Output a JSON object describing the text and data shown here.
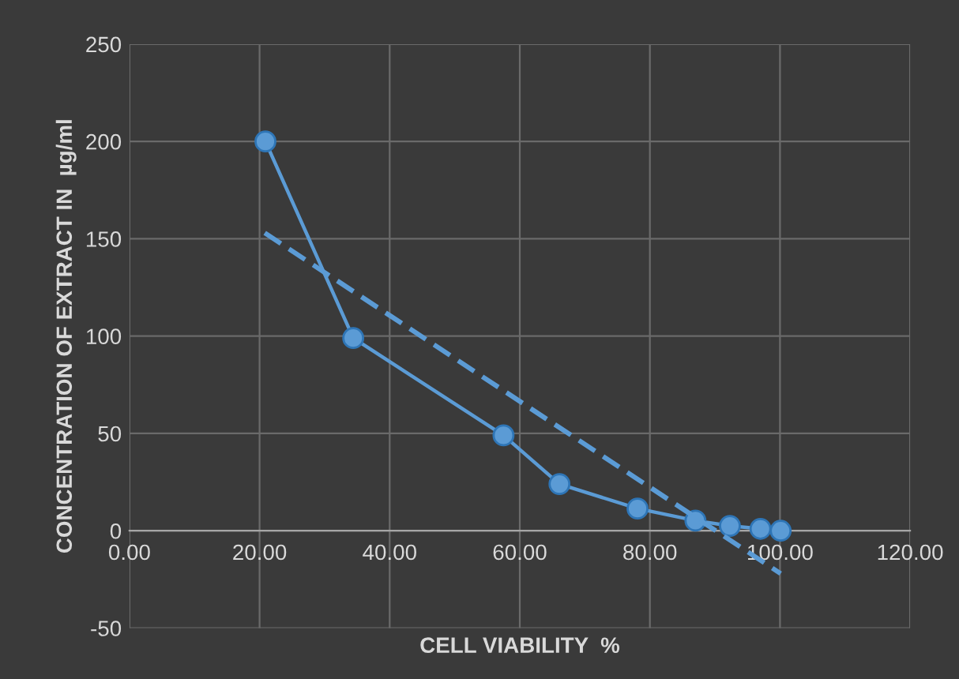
{
  "chart_data": {
    "type": "line",
    "xlabel": "CELL VIABILITY  %",
    "ylabel": "CONCENTRATION OF EXTRACT IN  µg/ml",
    "series": [
      {
        "x": [
          20.9,
          34.4,
          57.5,
          66.1,
          78.1,
          87.0,
          92.3,
          97.0,
          100.1
        ],
        "values": [
          200,
          99,
          49,
          24,
          11.4,
          5.2,
          2.5,
          1,
          0
        ],
        "color": "#5b9bd5",
        "marker": "circle",
        "line_style": "solid"
      },
      {
        "x": [
          20.8,
          100.1
        ],
        "values": [
          153,
          -22
        ],
        "color": "#5b9bd5",
        "marker": "none",
        "line_style": "dashed"
      }
    ],
    "xlim": [
      0,
      120
    ],
    "ylim": [
      -50,
      250
    ],
    "xticks": [
      {
        "value": 0,
        "label": "0.00"
      },
      {
        "value": 20,
        "label": "20.00"
      },
      {
        "value": 40,
        "label": "40.00"
      },
      {
        "value": 60,
        "label": "60.00"
      },
      {
        "value": 80,
        "label": "80.00"
      },
      {
        "value": 100,
        "label": "100.00"
      },
      {
        "value": 120,
        "label": "120.00"
      }
    ],
    "yticks": [
      -50,
      0,
      50,
      100,
      150,
      200,
      250
    ],
    "grid": true,
    "legend": false
  }
}
